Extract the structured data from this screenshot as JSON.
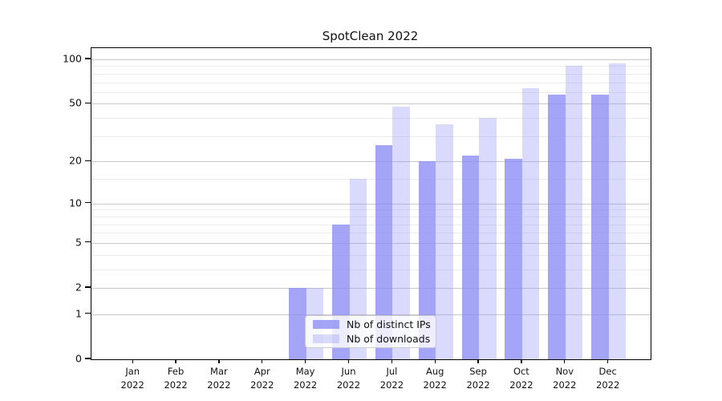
{
  "title": "SpotClean 2022",
  "legend": {
    "items": [
      {
        "label": "Nb of distinct IPs",
        "series": "ips"
      },
      {
        "label": "Nb of downloads",
        "series": "downloads"
      }
    ]
  },
  "y_axis": {
    "tick_labels": [
      "100",
      "50",
      "20",
      "10",
      "5",
      "2",
      "1",
      "0"
    ],
    "tick_values": [
      100,
      50,
      20,
      10,
      5,
      2,
      1,
      0
    ]
  },
  "x_axis": {
    "months": [
      "Jan",
      "Feb",
      "Mar",
      "Apr",
      "May",
      "Jun",
      "Jul",
      "Aug",
      "Sep",
      "Oct",
      "Nov",
      "Dec"
    ],
    "year": "2022"
  },
  "colors": {
    "ips_bar": "rgba(140,140,245,0.78)",
    "downloads_bar": "rgba(140,140,245,0.32)",
    "grid_major": "#c9c9c9",
    "grid_minor": "#ececee",
    "axis": "#000000"
  },
  "chart_data": {
    "type": "bar",
    "categories": [
      "Jan 2022",
      "Feb 2022",
      "Mar 2022",
      "Apr 2022",
      "May 2022",
      "Jun 2022",
      "Jul 2022",
      "Aug 2022",
      "Sep 2022",
      "Oct 2022",
      "Nov 2022",
      "Dec 2022"
    ],
    "series": [
      {
        "name": "Nb of distinct IPs",
        "values": [
          0,
          0,
          0,
          0,
          2,
          7,
          26,
          20,
          22,
          21,
          58,
          58
        ]
      },
      {
        "name": "Nb of downloads",
        "values": [
          0,
          0,
          0,
          0,
          2,
          15,
          48,
          36,
          40,
          64,
          90,
          94
        ]
      }
    ],
    "title": "SpotClean 2022",
    "xlabel": "",
    "ylabel": "",
    "yscale": "log1p",
    "ylim": [
      0,
      118
    ],
    "y_major_ticks": [
      0,
      1,
      2,
      5,
      10,
      20,
      50,
      100
    ],
    "y_minor_ticks": [
      3,
      4,
      6,
      7,
      8,
      9,
      15,
      30,
      40,
      60,
      70,
      80,
      90
    ],
    "grid": true,
    "legend_position": "lower center-left inside plot"
  }
}
